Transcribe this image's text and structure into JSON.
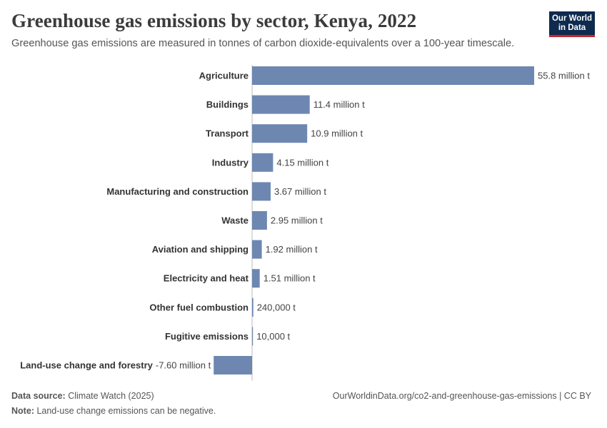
{
  "header": {
    "title": "Greenhouse gas emissions by sector, Kenya, 2022",
    "subtitle": "Greenhouse gas emissions are measured in tonnes of carbon dioxide-equivalents over a 100-year timescale."
  },
  "logo": {
    "line1": "Our World",
    "line2": "in Data"
  },
  "footer": {
    "source_label": "Data source:",
    "source_text": "Climate Watch (2025)",
    "url": "OurWorldinData.org/co2-and-greenhouse-gas-emissions | CC BY",
    "note_label": "Note:",
    "note_text": "Land-use change emissions can be negative."
  },
  "colors": {
    "bar": "#6d87b1",
    "axis": "#bbbbbb"
  },
  "chart_data": {
    "type": "bar",
    "orientation": "horizontal",
    "title": "Greenhouse gas emissions by sector, Kenya, 2022",
    "unit": "tonnes CO2-equivalents",
    "categories": [
      "Agriculture",
      "Buildings",
      "Transport",
      "Industry",
      "Manufacturing and construction",
      "Waste",
      "Aviation and shipping",
      "Electricity and heat",
      "Other fuel combustion",
      "Fugitive emissions",
      "Land-use change and forestry"
    ],
    "values": [
      55800000,
      11400000,
      10900000,
      4150000,
      3670000,
      2950000,
      1920000,
      1510000,
      240000,
      10000,
      -7600000
    ],
    "labels": [
      "55.8 million t",
      "11.4 million t",
      "10.9 million t",
      "4.15 million t",
      "3.67 million t",
      "2.95 million t",
      "1.92 million t",
      "1.51 million t",
      "240,000 t",
      "10,000 t",
      "-7.60 million t"
    ],
    "xlim": [
      -7600000,
      55800000
    ]
  }
}
